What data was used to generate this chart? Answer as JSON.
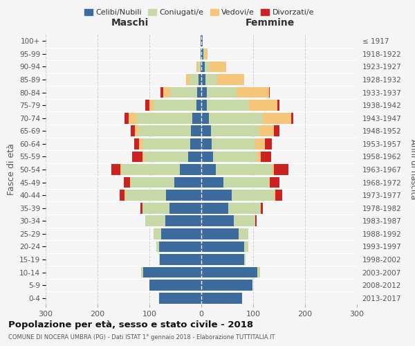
{
  "age_groups": [
    "0-4",
    "5-9",
    "10-14",
    "15-19",
    "20-24",
    "25-29",
    "30-34",
    "35-39",
    "40-44",
    "45-49",
    "50-54",
    "55-59",
    "60-64",
    "65-69",
    "70-74",
    "75-79",
    "80-84",
    "85-89",
    "90-94",
    "95-99",
    "100+"
  ],
  "birth_years": [
    "2013-2017",
    "2008-2012",
    "2003-2007",
    "1998-2002",
    "1993-1997",
    "1988-1992",
    "1983-1987",
    "1978-1982",
    "1973-1977",
    "1968-1972",
    "1963-1967",
    "1958-1962",
    "1953-1957",
    "1948-1952",
    "1943-1947",
    "1938-1942",
    "1933-1937",
    "1928-1932",
    "1923-1927",
    "1918-1922",
    "≤ 1917"
  ],
  "colors": {
    "celibe": "#3d6b9e",
    "coniugato": "#c8d9a8",
    "vedovo": "#f5c57a",
    "divorziato": "#cc2222"
  },
  "maschi": {
    "celibe": [
      82,
      100,
      112,
      80,
      82,
      78,
      70,
      62,
      68,
      52,
      42,
      25,
      22,
      20,
      18,
      10,
      8,
      5,
      2,
      1,
      2
    ],
    "coniugato": [
      0,
      0,
      4,
      2,
      5,
      14,
      38,
      52,
      78,
      84,
      112,
      84,
      92,
      100,
      108,
      82,
      52,
      18,
      5,
      1,
      0
    ],
    "vedovo": [
      0,
      0,
      0,
      0,
      0,
      0,
      0,
      0,
      2,
      2,
      2,
      4,
      6,
      8,
      14,
      8,
      14,
      6,
      2,
      0,
      0
    ],
    "divorziato": [
      0,
      0,
      0,
      0,
      0,
      0,
      0,
      4,
      10,
      12,
      18,
      20,
      10,
      8,
      8,
      8,
      5,
      0,
      0,
      0,
      0
    ]
  },
  "femmine": {
    "celibe": [
      78,
      98,
      108,
      82,
      82,
      72,
      62,
      52,
      58,
      42,
      28,
      22,
      20,
      18,
      15,
      10,
      10,
      8,
      6,
      4,
      2
    ],
    "coniugato": [
      0,
      0,
      5,
      3,
      8,
      18,
      42,
      62,
      82,
      88,
      108,
      84,
      84,
      94,
      104,
      82,
      58,
      22,
      10,
      2,
      0
    ],
    "vedovo": [
      0,
      0,
      0,
      0,
      0,
      0,
      0,
      0,
      2,
      2,
      4,
      8,
      18,
      28,
      54,
      54,
      62,
      52,
      32,
      6,
      0
    ],
    "divorziato": [
      0,
      0,
      0,
      0,
      0,
      0,
      2,
      4,
      14,
      18,
      28,
      20,
      14,
      10,
      4,
      4,
      2,
      0,
      0,
      0,
      0
    ]
  },
  "title": "Popolazione per età, sesso e stato civile - 2018",
  "subtitle": "COMUNE DI NOCERA UMBRA (PG) - Dati ISTAT 1° gennaio 2018 - Elaborazione TUTTITALIA.IT",
  "xlabel_left": "Maschi",
  "xlabel_right": "Femmine",
  "ylabel_left": "Fasce di età",
  "ylabel_right": "Anni di nascita",
  "xlim": 300,
  "legend_labels": [
    "Celibi/Nubili",
    "Coniugati/e",
    "Vedovi/e",
    "Divorzati/e"
  ],
  "bg_color": "#f5f5f5",
  "grid_color": "#cccccc",
  "bar_height": 0.85
}
